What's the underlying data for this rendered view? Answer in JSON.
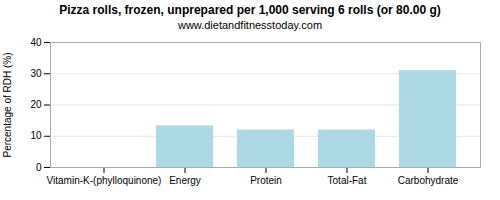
{
  "chart_data": {
    "type": "bar",
    "title": "Pizza rolls, frozen, unprepared per 1,000 serving 6 rolls (or 80.00 g)",
    "subtitle": "www.dietandfitnesstoday.com",
    "ylabel": "Percentage of RDH (%)",
    "categories": [
      "Vitamin-K-(phylloquinone)",
      "Energy",
      "Protein",
      "Total-Fat",
      "Carbohydrate"
    ],
    "values": [
      0,
      13.3,
      12.0,
      12.0,
      31.0
    ],
    "color": "#add8e6",
    "ylim": [
      0,
      40
    ],
    "yticks": [
      0,
      10,
      20,
      30,
      40
    ],
    "grid": true
  }
}
